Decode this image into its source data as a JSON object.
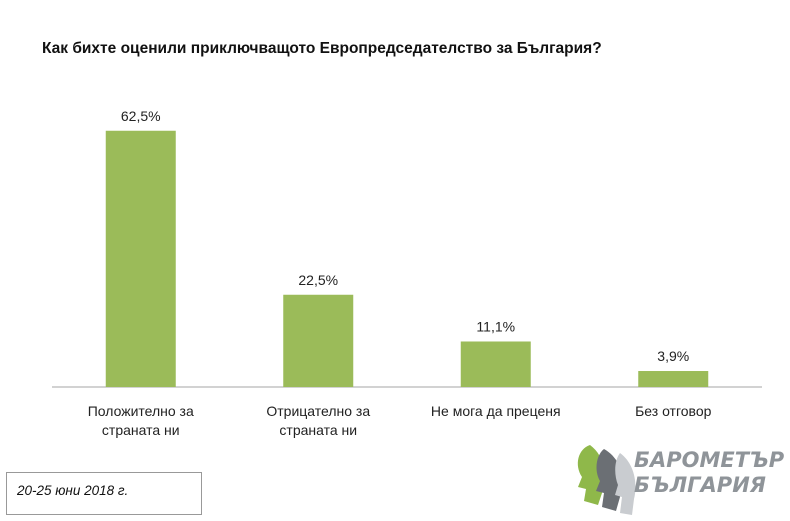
{
  "title": "Как бихте оценили приключващото Европредседателство за България?",
  "date_note": "20-25 юни 2018 г.",
  "logo": {
    "line1": "БАРОМЕТЪР",
    "line2": "БЪЛГАРИЯ",
    "colors": [
      "#8fb84a",
      "#6b6f74",
      "#c9ccd0"
    ]
  },
  "colors": {
    "bar": "#9bbb59",
    "axis": "#a6a6a6"
  },
  "chart_data": {
    "type": "bar",
    "title": "Как бихте оценили приключващото Европредседателство за България?",
    "categories": [
      [
        "Положително за",
        "страната ни"
      ],
      [
        "Отрицателно за",
        "страната ни"
      ],
      [
        "Не мога да преценя"
      ],
      [
        "Без отговор"
      ]
    ],
    "values": [
      62.5,
      22.5,
      11.1,
      3.9
    ],
    "data_labels": [
      "62,5%",
      "22,5%",
      "11,1%",
      "3,9%"
    ],
    "ylim": [
      0,
      70
    ],
    "grid": false,
    "legend": "none"
  }
}
